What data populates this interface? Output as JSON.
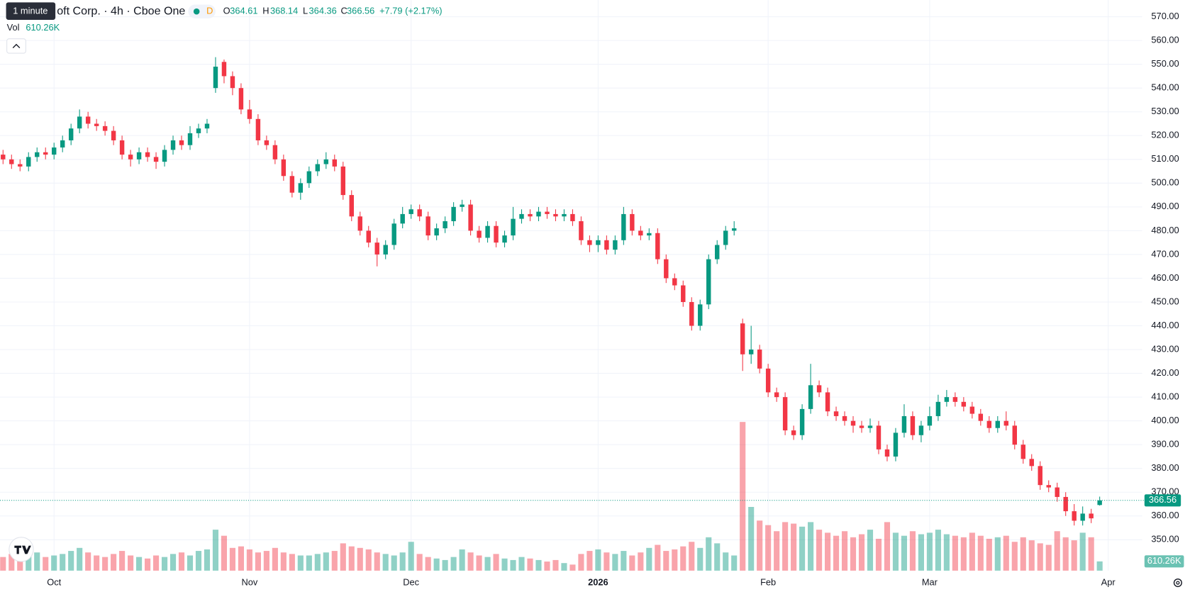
{
  "chart_data": {
    "type": "candlestick",
    "header": {
      "tooltip": "1 minute",
      "symbol": "oft Corp. · 4h · Cboe One",
      "badge": "D",
      "open_letter": "O",
      "high_letter": "H",
      "low_letter": "L",
      "close_letter": "C",
      "change": "+7.79 (+2.17%)",
      "vol_title": "Vol",
      "volume": {
        "value": 610260,
        "label": "610.26K"
      }
    },
    "up_color": "#089981",
    "down_color": "#f23645",
    "grid": true,
    "ylim": [
      337,
      577
    ],
    "yticks": [
      {
        "value": 350,
        "label": "350.00"
      },
      {
        "value": 360,
        "label": "360.00"
      },
      {
        "value": 370,
        "label": "370.00"
      },
      {
        "value": 380,
        "label": "380.00"
      },
      {
        "value": 390,
        "label": "390.00"
      },
      {
        "value": 400,
        "label": "400.00"
      },
      {
        "value": 410,
        "label": "410.00"
      },
      {
        "value": 420,
        "label": "420.00"
      },
      {
        "value": 430,
        "label": "430.00"
      },
      {
        "value": 440,
        "label": "440.00"
      },
      {
        "value": 450,
        "label": "450.00"
      },
      {
        "value": 460,
        "label": "460.00"
      },
      {
        "value": 470,
        "label": "470.00"
      },
      {
        "value": 480,
        "label": "480.00"
      },
      {
        "value": 490,
        "label": "490.00"
      },
      {
        "value": 500,
        "label": "500.00"
      },
      {
        "value": 510,
        "label": "510.00"
      },
      {
        "value": 520,
        "label": "520.00"
      },
      {
        "value": 530,
        "label": "530.00"
      },
      {
        "value": 540,
        "label": "540.00"
      },
      {
        "value": 550,
        "label": "550.00"
      },
      {
        "value": 560,
        "label": "560.00"
      },
      {
        "value": 570,
        "label": "570.00"
      }
    ],
    "categories": [
      null,
      null,
      null,
      null,
      null,
      null,
      "Oct",
      null,
      null,
      null,
      null,
      null,
      null,
      null,
      null,
      null,
      null,
      null,
      null,
      null,
      null,
      null,
      null,
      null,
      null,
      null,
      null,
      null,
      null,
      "Nov",
      null,
      null,
      null,
      null,
      null,
      null,
      null,
      null,
      null,
      null,
      null,
      null,
      null,
      null,
      null,
      null,
      null,
      null,
      "Dec",
      null,
      null,
      null,
      null,
      null,
      null,
      null,
      null,
      null,
      null,
      null,
      null,
      null,
      null,
      null,
      null,
      null,
      null,
      null,
      null,
      null,
      "2026",
      null,
      null,
      null,
      null,
      null,
      null,
      null,
      null,
      null,
      null,
      null,
      null,
      null,
      null,
      null,
      null,
      null,
      null,
      null,
      "Feb",
      null,
      null,
      null,
      null,
      null,
      null,
      null,
      null,
      null,
      null,
      null,
      null,
      null,
      null,
      null,
      null,
      null,
      null,
      "Mar",
      null,
      null,
      null,
      null,
      null,
      null,
      null,
      null,
      null,
      null,
      null,
      null,
      null,
      null,
      null,
      null,
      null,
      null,
      null,
      null,
      "Apr"
    ],
    "open": [
      512,
      510,
      508,
      507,
      511,
      513,
      512,
      515,
      518,
      523,
      528,
      525,
      524,
      522,
      518,
      512,
      510,
      513,
      511,
      509,
      514,
      518,
      516,
      521,
      523,
      540,
      551,
      545,
      540,
      531,
      527,
      518,
      516,
      510,
      503,
      496,
      500,
      505,
      508,
      510,
      507,
      495,
      486,
      480,
      475,
      470,
      474,
      483,
      487,
      489,
      486,
      478,
      481,
      484,
      490,
      491,
      480,
      477,
      482,
      475,
      478,
      485,
      487,
      486,
      488,
      487,
      486,
      487,
      484,
      476,
      474,
      476,
      472,
      476,
      487,
      480,
      478,
      479,
      468,
      460,
      457,
      450,
      440,
      449,
      468,
      474,
      480,
      441,
      428,
      430,
      422,
      412,
      410,
      396,
      394,
      405,
      415,
      412,
      404,
      402,
      400,
      398,
      397,
      398,
      388,
      385,
      395,
      402,
      394,
      398,
      402,
      408,
      410,
      408,
      406,
      403,
      400,
      397,
      400,
      398,
      390,
      384,
      381,
      373,
      372,
      368,
      362,
      358,
      361,
      364.61,
      null
    ],
    "high": [
      514,
      512,
      510,
      513,
      515,
      515,
      517,
      520,
      525,
      531,
      530,
      527,
      526,
      524,
      520,
      514,
      515,
      515,
      513,
      516,
      520,
      520,
      524,
      525,
      527,
      553,
      552,
      547,
      542,
      535,
      529,
      520,
      518,
      512,
      505,
      502,
      507,
      510,
      513,
      512,
      509,
      497,
      488,
      482,
      477,
      476,
      485,
      490,
      491,
      491,
      488,
      483,
      486,
      492,
      493,
      493,
      482,
      484,
      484,
      480,
      490,
      489,
      489,
      490,
      490,
      489,
      489,
      489,
      486,
      478,
      478,
      478,
      478,
      490,
      489,
      482,
      481,
      481,
      470,
      462,
      459,
      452,
      451,
      470,
      476,
      482,
      484,
      443,
      440,
      432,
      424,
      414,
      412,
      398,
      407,
      424,
      417,
      414,
      406,
      404,
      402,
      400,
      401,
      400,
      390,
      397,
      407,
      404,
      400,
      406,
      411,
      413,
      412,
      410,
      408,
      405,
      402,
      402,
      404,
      400,
      392,
      386,
      383,
      375,
      374,
      370,
      365,
      364,
      363,
      368.14,
      null
    ],
    "low": [
      508,
      506,
      505,
      505,
      509,
      510,
      510,
      513,
      516,
      521,
      523,
      522,
      520,
      516,
      510,
      507,
      508,
      509,
      506,
      507,
      512,
      514,
      514,
      519,
      521,
      538,
      542,
      537,
      529,
      525,
      516,
      514,
      508,
      501,
      494,
      493,
      498,
      503,
      506,
      505,
      493,
      484,
      478,
      473,
      465,
      468,
      472,
      481,
      485,
      484,
      476,
      476,
      479,
      482,
      488,
      478,
      475,
      475,
      473,
      473,
      476,
      483,
      484,
      484,
      485,
      484,
      484,
      482,
      474,
      471,
      471,
      470,
      470,
      474,
      478,
      476,
      476,
      466,
      458,
      455,
      448,
      438,
      438,
      447,
      466,
      472,
      478,
      421,
      424,
      420,
      410,
      408,
      394,
      392,
      392,
      403,
      410,
      402,
      400,
      398,
      395,
      395,
      395,
      386,
      383,
      383,
      393,
      392,
      391,
      396,
      400,
      406,
      406,
      404,
      401,
      398,
      395,
      395,
      396,
      388,
      382,
      379,
      371,
      370,
      366,
      360,
      356,
      356,
      357,
      364.36,
      null
    ],
    "close": [
      510,
      508,
      507,
      511,
      513,
      512,
      515,
      518,
      523,
      528,
      525,
      524,
      522,
      518,
      512,
      510,
      513,
      511,
      509,
      514,
      518,
      516,
      521,
      523,
      525,
      549,
      545,
      540,
      531,
      527,
      518,
      516,
      510,
      503,
      496,
      500,
      505,
      508,
      510,
      507,
      495,
      486,
      480,
      475,
      470,
      474,
      483,
      487,
      489,
      486,
      478,
      481,
      484,
      490,
      491,
      480,
      477,
      482,
      475,
      478,
      485,
      487,
      486,
      488,
      487,
      486,
      487,
      484,
      476,
      474,
      476,
      472,
      476,
      487,
      480,
      478,
      479,
      468,
      460,
      457,
      450,
      440,
      449,
      468,
      474,
      480,
      481,
      428,
      430,
      422,
      412,
      410,
      396,
      394,
      405,
      415,
      412,
      404,
      402,
      400,
      398,
      397,
      398,
      388,
      385,
      395,
      402,
      394,
      398,
      402,
      408,
      410,
      408,
      406,
      403,
      400,
      397,
      400,
      398,
      390,
      384,
      381,
      373,
      372,
      368,
      362,
      358,
      361,
      359,
      366.56,
      null
    ],
    "volume": [
      900000,
      1100000,
      800000,
      1000000,
      1200000,
      900000,
      1000000,
      1100000,
      1300000,
      1500000,
      1200000,
      1000000,
      900000,
      1100000,
      1300000,
      1000000,
      900000,
      800000,
      1000000,
      900000,
      1100000,
      1200000,
      1000000,
      1300000,
      1400000,
      2700000,
      2300000,
      1500000,
      1600000,
      1400000,
      1200000,
      1300000,
      1500000,
      1200000,
      1100000,
      1000000,
      1000000,
      1100000,
      1200000,
      1300000,
      1800000,
      1600000,
      1500000,
      1400000,
      1200000,
      1100000,
      1000000,
      1200000,
      1900000,
      1100000,
      900000,
      800000,
      700000,
      900000,
      1400000,
      1200000,
      1000000,
      900000,
      1100000,
      800000,
      700000,
      900000,
      800000,
      700000,
      600000,
      700000,
      500000,
      400000,
      1100000,
      1300000,
      1400000,
      1200000,
      1100000,
      1300000,
      1000000,
      1200000,
      1500000,
      1700000,
      1300000,
      1400000,
      1600000,
      1900000,
      1500000,
      2200000,
      1800000,
      1200000,
      1000000,
      9800000,
      4200000,
      3300000,
      3000000,
      2600000,
      3200000,
      3100000,
      2900000,
      3200000,
      2700000,
      2500000,
      2300000,
      2600000,
      2200000,
      2400000,
      2700000,
      2100000,
      3200000,
      2500000,
      2300000,
      2600000,
      2400000,
      2500000,
      2700000,
      2400000,
      2300000,
      2200000,
      2500000,
      2300000,
      2100000,
      2200000,
      2300000,
      1900000,
      2200000,
      2000000,
      1800000,
      1700000,
      2600000,
      2200000,
      2000000,
      2500000,
      2200000,
      610260,
      null
    ]
  }
}
